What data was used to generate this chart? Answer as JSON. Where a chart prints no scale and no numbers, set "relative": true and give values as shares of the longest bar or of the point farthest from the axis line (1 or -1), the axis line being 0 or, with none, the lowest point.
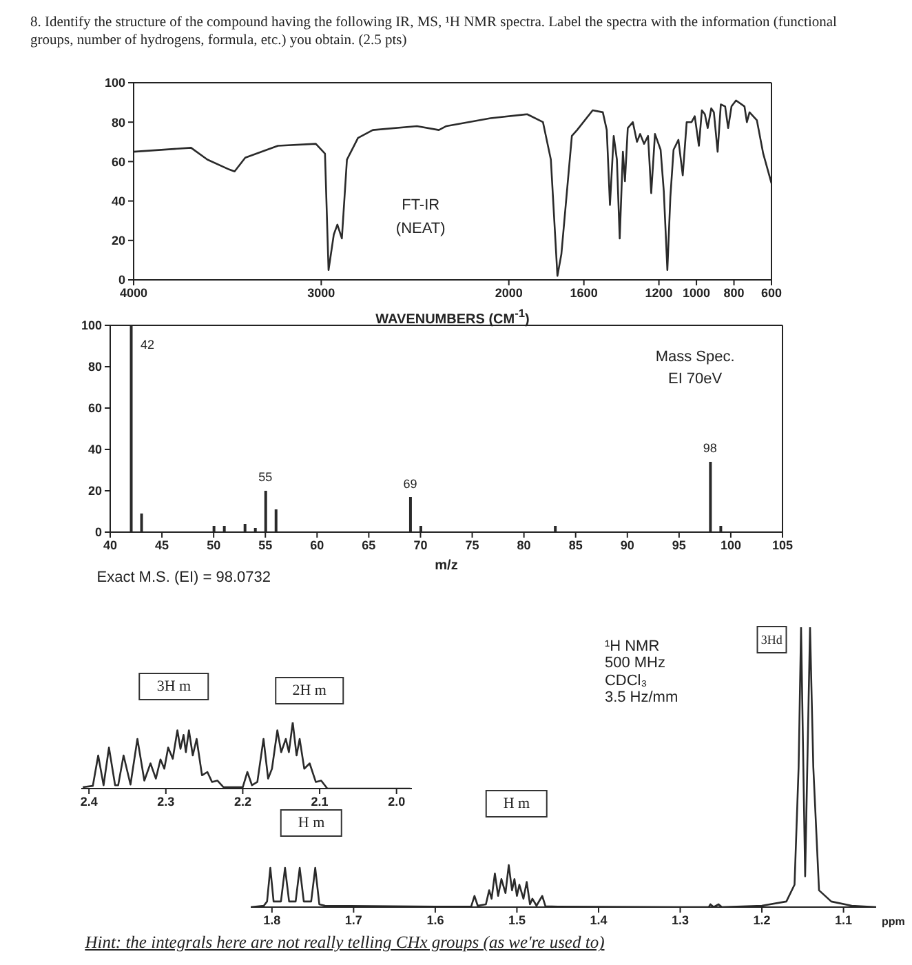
{
  "chart_data": [
    {
      "type": "line",
      "title": "8.   Identify the structure of the compound having the following IR, MS, ¹H NMR spectra. Label the spectra with the information (functional groups, number of hydrogens, formula, etc.) you obtain. (2.5 pts)",
      "xlabel": "WAVENUMBERS (CM$^{-1}$)",
      "color": "#2a2a2a",
      "x": [
        4000,
        3694,
        3607,
        3491,
        3462,
        3405,
        3231,
        3029,
        2980,
        2961,
        2933,
        2914,
        2890,
        2863,
        2804,
        2725,
        2490,
        2373,
        2333,
        2098,
        1902,
        1818,
        1776,
        1741,
        1720,
        1664,
        1636,
        1553,
        1499,
        1478,
        1461,
        1441,
        1424,
        1409,
        1392,
        1381,
        1366,
        1339,
        1317,
        1300,
        1279,
        1258,
        1241,
        1221,
        1191,
        1174,
        1155,
        1139,
        1122,
        1096,
        1073,
        1052,
        1026,
        1009,
        987,
        971,
        955,
        940,
        921,
        907,
        887,
        870,
        847,
        831,
        813,
        789,
        744,
        731,
        717,
        678,
        644,
        600
      ],
      "values": [
        65,
        67,
        61,
        56,
        55,
        62,
        68,
        69,
        64,
        5,
        23,
        28,
        21,
        61,
        72,
        76,
        78,
        76,
        78,
        82,
        84,
        80,
        61,
        2,
        13,
        73,
        76,
        86,
        85,
        76,
        38,
        73,
        61,
        21,
        65,
        50,
        77,
        80,
        70,
        74,
        69,
        73,
        44,
        74,
        66,
        45,
        5,
        42,
        66,
        71,
        53,
        80,
        80,
        83,
        68,
        86,
        84,
        77,
        87,
        85,
        65,
        89,
        88,
        77,
        88,
        91,
        88,
        80,
        85,
        81,
        64,
        49
      ],
      "xlim": [
        4000,
        600
      ],
      "xticks": [
        4000,
        3000,
        2000,
        1600,
        1200,
        1000,
        800,
        600
      ],
      "ylim": [
        0,
        100
      ],
      "yticks": [
        0,
        20,
        40,
        60,
        80,
        100
      ],
      "annotations": [
        "FT-IR",
        "(NEAT)"
      ]
    },
    {
      "type": "bar",
      "xlabel": "m/z",
      "color": "#2a2a2a",
      "x": [
        42,
        43,
        50,
        51,
        53,
        54,
        55,
        56,
        69,
        70,
        83,
        98,
        99
      ],
      "values": [
        100,
        9,
        3,
        3,
        4,
        2,
        20,
        11,
        17,
        3,
        3,
        34,
        3
      ],
      "xlim": [
        40,
        105
      ],
      "xticks": [
        40,
        45,
        50,
        55,
        60,
        65,
        70,
        75,
        80,
        85,
        90,
        95,
        100,
        105
      ],
      "ylim": [
        0,
        100
      ],
      "yticks": [
        0,
        20,
        40,
        60,
        80,
        100
      ],
      "annotations": [
        "Mass Spec.",
        "EI 70eV",
        "Exact M.S. (EI) = 98.0732",
        {
          "text": "42",
          "x": 42,
          "y": 100
        },
        {
          "text": "55",
          "x": 55,
          "y": 20
        },
        {
          "text": "69",
          "x": 69,
          "y": 17
        },
        {
          "text": "98",
          "x": 98,
          "y": 34
        }
      ]
    },
    {
      "type": "line",
      "relative": true,
      "color": "#2a2a2a",
      "x": [
        2.408,
        2.395,
        2.388,
        2.381,
        2.374,
        2.366,
        2.362,
        2.355,
        2.346,
        2.337,
        2.328,
        2.32,
        2.313,
        2.307,
        2.302,
        2.297,
        2.291,
        2.285,
        2.281,
        2.277,
        2.274,
        2.27,
        2.265,
        2.26,
        2.253,
        2.246,
        2.24,
        2.233,
        2.225,
        2.2,
        2.194,
        2.188,
        2.181,
        2.173,
        2.167,
        2.162,
        2.155,
        2.15,
        2.144,
        2.14,
        2.135,
        2.13,
        2.126,
        2.12,
        2.113,
        2.105,
        2.098,
        2.09,
        1.982
      ],
      "values": [
        0.02,
        0.04,
        0.5,
        0.05,
        0.62,
        0.05,
        0.05,
        0.5,
        0.06,
        0.75,
        0.12,
        0.38,
        0.15,
        0.44,
        0.3,
        0.62,
        0.45,
        0.88,
        0.6,
        0.81,
        0.55,
        0.88,
        0.5,
        0.75,
        0.2,
        0.25,
        0.1,
        0.12,
        0.02,
        0.02,
        0.25,
        0.05,
        0.1,
        0.75,
        0.15,
        0.3,
        0.88,
        0.55,
        0.75,
        0.55,
        1,
        0.5,
        0.75,
        0.3,
        0.38,
        0.1,
        0.12,
        0,
        0
      ],
      "xlim": [
        2.41,
        1.98
      ],
      "xticks": [
        2.4,
        2.3,
        2.2,
        2.1,
        {
          "value": 2,
          "label": "2.0"
        }
      ],
      "annotations": [
        "3H  m",
        "2H  m"
      ]
    },
    {
      "type": "line",
      "relative": true,
      "color": "#2a2a2a",
      "xlabel": "ppm",
      "x": [
        1.826,
        1.81,
        1.806,
        1.802,
        1.798,
        1.789,
        1.784,
        1.779,
        1.771,
        1.766,
        1.761,
        1.752,
        1.747,
        1.742,
        1.735,
        1.6,
        1.556,
        1.552,
        1.548,
        1.538,
        1.534,
        1.531,
        1.527,
        1.523,
        1.519,
        1.514,
        1.51,
        1.506,
        1.503,
        1.5,
        1.497,
        1.492,
        1.488,
        1.484,
        1.481,
        1.476,
        1.469,
        1.465,
        1.45,
        1.3,
        1.265,
        1.263,
        1.259,
        1.253,
        1.249,
        1.2,
        1.17,
        1.16,
        1.155,
        1.152,
        1.147,
        1.141,
        1.137,
        1.13,
        1.115,
        1.09,
        1.06
      ],
      "values": [
        0,
        0.005,
        0.02,
        0.14,
        0.02,
        0.02,
        0.14,
        0.02,
        0.02,
        0.14,
        0.02,
        0.02,
        0.14,
        0.01,
        0.005,
        0.002,
        0.002,
        0.04,
        0.005,
        0.01,
        0.06,
        0.03,
        0.12,
        0.04,
        0.1,
        0.05,
        0.15,
        0.06,
        0.1,
        0.04,
        0.08,
        0.03,
        0.09,
        0.01,
        0.03,
        0.005,
        0.04,
        0.003,
        0.002,
        0,
        0,
        0.01,
        0,
        0.01,
        0,
        0.005,
        0.02,
        0.08,
        0.5,
        1,
        0.11,
        1,
        0.5,
        0.06,
        0.02,
        0.005,
        0
      ],
      "xlim": [
        1.826,
        1.06
      ],
      "xticks": [
        1.8,
        1.7,
        1.6,
        1.5,
        1.4,
        1.3,
        1.2,
        1.1
      ],
      "annotations": [
        "¹H NMR",
        "500 MHz",
        "CDCl₃",
        "3.5 Hz/mm",
        "H m",
        "H m",
        "3Hd",
        "Hint: the integrals here are not really telling CHx groups (as we're used to)"
      ]
    }
  ]
}
